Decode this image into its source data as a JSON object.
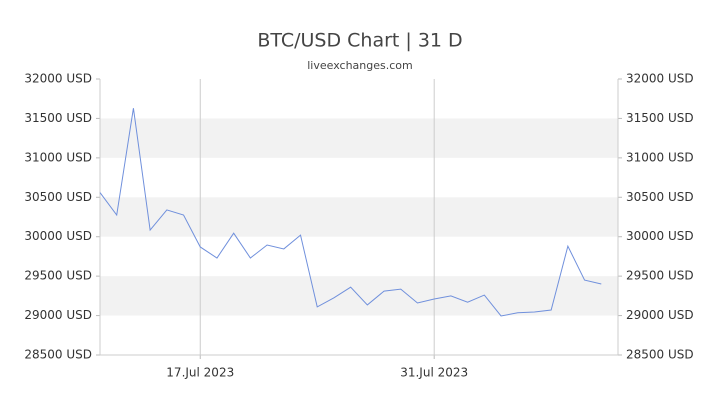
{
  "chart_data": {
    "type": "line",
    "title": "BTC/USD Chart | 31 D",
    "subtitle": "liveexchanges.com",
    "x": [
      "2023-07-11",
      "2023-07-12",
      "2023-07-13",
      "2023-07-14",
      "2023-07-15",
      "2023-07-16",
      "2023-07-17",
      "2023-07-18",
      "2023-07-19",
      "2023-07-20",
      "2023-07-21",
      "2023-07-22",
      "2023-07-23",
      "2023-07-24",
      "2023-07-25",
      "2023-07-26",
      "2023-07-27",
      "2023-07-28",
      "2023-07-29",
      "2023-07-30",
      "2023-07-31",
      "2023-08-01",
      "2023-08-02",
      "2023-08-03",
      "2023-08-04",
      "2023-08-05",
      "2023-08-06",
      "2023-08-07",
      "2023-08-08",
      "2023-08-09",
      "2023-08-10"
    ],
    "series": [
      {
        "name": "BTC/USD",
        "color": "#7090dc",
        "values": [
          30560,
          30275,
          31630,
          30085,
          30340,
          30275,
          29870,
          29730,
          30045,
          29730,
          29895,
          29845,
          30020,
          29110,
          29225,
          29360,
          29135,
          29310,
          29335,
          29160,
          29210,
          29250,
          29170,
          29260,
          28995,
          29035,
          29045,
          29070,
          29880,
          29450,
          29400
        ]
      }
    ],
    "xlim": [
      "2023-07-11",
      "2023-08-11"
    ],
    "xticks": [
      {
        "value": "2023-07-17",
        "label": "17.Jul 2023"
      },
      {
        "value": "2023-07-31",
        "label": "31.Jul 2023"
      }
    ],
    "ylim": [
      28500,
      32000
    ],
    "yticks": [
      {
        "value": 28500,
        "label": "28500 USD"
      },
      {
        "value": 29000,
        "label": "29000 USD"
      },
      {
        "value": 29500,
        "label": "29500 USD"
      },
      {
        "value": 30000,
        "label": "30000 USD"
      },
      {
        "value": 30500,
        "label": "30500 USD"
      },
      {
        "value": 31000,
        "label": "31000 USD"
      },
      {
        "value": 31500,
        "label": "31500 USD"
      },
      {
        "value": 32000,
        "label": "32000 USD"
      }
    ],
    "grid": true
  }
}
